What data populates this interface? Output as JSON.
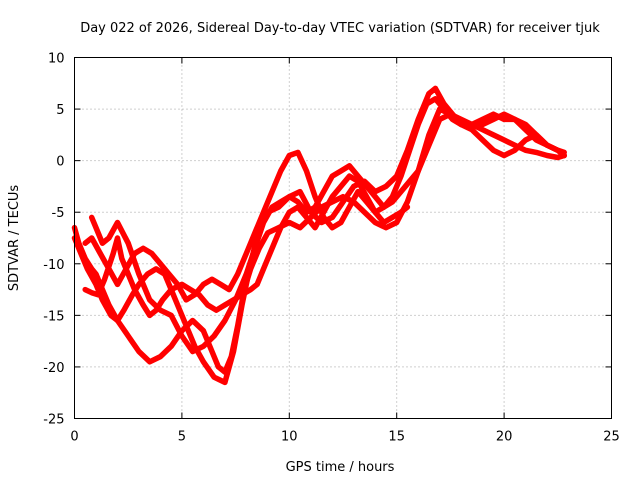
{
  "chart_data": {
    "type": "line",
    "title": "Day 022 of 2026, Sidereal Day-to-day VTEC variation (SDTVAR) for receiver tjuk",
    "xlabel": "GPS time / hours",
    "ylabel": "SDTVAR / TECUs",
    "xlim": [
      0,
      25
    ],
    "ylim": [
      -25,
      10
    ],
    "xticks": [
      "0",
      "5",
      "10",
      "15",
      "20",
      "25"
    ],
    "yticks": [
      "-25",
      "-20",
      "-15",
      "-10",
      "-5",
      "0",
      "5",
      "10"
    ],
    "grid": true,
    "color": "#ff0000",
    "series": [
      {
        "x": [
          0.0,
          0.2,
          0.5,
          0.8,
          1.0,
          1.3,
          1.6,
          2.0,
          2.5,
          3.0,
          3.5,
          4.0,
          4.5,
          5.0,
          5.5,
          6.0,
          6.4,
          6.7,
          7.0,
          7.3,
          7.6,
          7.9,
          8.2,
          8.6,
          9.0,
          9.5,
          10.0,
          10.5,
          11.0,
          11.5,
          12.0,
          12.5,
          13.0,
          13.5,
          14.0,
          14.5,
          15.0,
          15.5,
          16.0,
          16.5,
          17.0,
          17.5,
          18.0,
          18.5,
          19.0,
          19.5,
          20.0,
          20.5,
          21.0,
          21.5,
          22.0,
          22.5,
          22.8
        ],
        "y": [
          -6.5,
          -8.0,
          -9.5,
          -10.5,
          -11.0,
          -12.5,
          -14.0,
          -15.5,
          -17.0,
          -18.5,
          -19.5,
          -19.0,
          -18.0,
          -16.5,
          -15.5,
          -16.5,
          -18.5,
          -20.0,
          -20.5,
          -19.0,
          -16.0,
          -12.5,
          -10.5,
          -8.5,
          -7.0,
          -6.5,
          -6.0,
          -6.5,
          -5.5,
          -4.5,
          -4.0,
          -3.5,
          -4.0,
          -5.0,
          -6.0,
          -6.5,
          -6.0,
          -4.0,
          -1.0,
          2.5,
          5.0,
          4.5,
          4.0,
          3.5,
          3.0,
          2.5,
          2.0,
          1.5,
          1.0,
          0.8,
          0.5,
          0.3,
          0.5
        ]
      },
      {
        "x": [
          0.0,
          0.3,
          0.6,
          1.0,
          1.3,
          1.7,
          2.0,
          2.3,
          2.7,
          3.0,
          3.4,
          3.8,
          4.2,
          4.5,
          4.8,
          5.2,
          5.6,
          6.0,
          6.5,
          7.0,
          7.4,
          7.8,
          8.2,
          8.6,
          9.0,
          9.5,
          10.0,
          10.5,
          11.0,
          11.5,
          12.0,
          12.5,
          13.0,
          13.5,
          14.0,
          14.5,
          15.0,
          15.5,
          16.0,
          16.5,
          16.8,
          17.2,
          17.8,
          18.5,
          19.0,
          19.5,
          20.0,
          20.5,
          21.0,
          21.5,
          22.0,
          22.5,
          22.8
        ],
        "y": [
          -7.5,
          -9.0,
          -10.5,
          -12.0,
          -13.5,
          -15.0,
          -15.5,
          -14.5,
          -13.0,
          -12.0,
          -11.0,
          -10.5,
          -11.0,
          -12.5,
          -14.0,
          -16.0,
          -18.0,
          -19.5,
          -21.0,
          -21.5,
          -18.5,
          -14.0,
          -10.0,
          -6.5,
          -5.0,
          -4.5,
          -3.5,
          -3.0,
          -5.0,
          -6.0,
          -5.5,
          -4.0,
          -2.5,
          -2.0,
          -3.0,
          -2.5,
          -1.5,
          1.0,
          4.0,
          6.5,
          7.0,
          5.5,
          4.0,
          3.5,
          3.5,
          4.0,
          4.5,
          4.0,
          3.0,
          2.0,
          1.5,
          1.0,
          0.5
        ]
      },
      {
        "x": [
          0.5,
          0.8,
          1.2,
          1.6,
          2.0,
          2.4,
          2.8,
          3.2,
          3.6,
          4.0,
          4.4,
          4.8,
          5.2,
          5.6,
          6.0,
          6.4,
          6.8,
          7.2,
          7.6,
          8.0,
          8.4,
          8.8,
          9.2,
          9.6,
          10.0,
          10.4,
          10.8,
          11.2,
          11.6,
          12.0,
          12.4,
          12.8,
          13.2,
          13.6,
          14.0,
          14.4,
          14.8,
          15.2,
          15.6,
          16.0,
          16.4,
          16.8,
          17.2,
          17.6,
          18.0,
          18.5,
          19.0,
          19.5,
          20.0,
          20.5,
          21.0,
          21.5,
          22.0,
          22.5,
          22.8
        ],
        "y": [
          -8.0,
          -7.5,
          -9.0,
          -10.5,
          -12.0,
          -10.5,
          -9.0,
          -8.5,
          -9.0,
          -10.0,
          -11.0,
          -12.0,
          -13.5,
          -13.0,
          -12.0,
          -11.5,
          -12.0,
          -12.5,
          -11.0,
          -9.0,
          -7.0,
          -5.0,
          -3.0,
          -1.0,
          0.5,
          0.8,
          -1.0,
          -3.5,
          -5.5,
          -6.5,
          -6.0,
          -4.5,
          -3.0,
          -4.0,
          -5.0,
          -4.5,
          -3.5,
          -1.5,
          1.0,
          3.5,
          5.5,
          6.0,
          5.0,
          4.0,
          3.5,
          3.5,
          4.0,
          4.5,
          4.0,
          4.0,
          3.5,
          2.5,
          1.5,
          1.0,
          0.5
        ]
      },
      {
        "x": [
          0.5,
          0.8,
          1.1,
          1.4,
          1.8,
          2.0,
          2.2,
          2.5,
          2.8,
          3.2,
          3.5,
          3.8,
          4.1,
          4.5,
          5.0,
          5.4,
          5.8,
          6.2,
          6.6,
          7.0,
          7.4,
          7.8,
          8.2,
          8.5,
          8.8,
          9.2,
          9.6,
          10.0,
          10.4,
          10.8,
          11.2,
          11.6,
          12.0,
          12.4,
          12.8,
          13.2,
          13.6,
          14.0,
          14.4,
          14.8,
          15.2,
          15.5
        ],
        "y": [
          -12.5,
          -12.8,
          -13.0,
          -11.5,
          -9.0,
          -7.5,
          -9.5,
          -11.0,
          -12.5,
          -14.0,
          -15.0,
          -14.5,
          -13.5,
          -12.5,
          -12.0,
          -12.5,
          -13.0,
          -14.0,
          -14.5,
          -14.0,
          -13.5,
          -13.0,
          -12.5,
          -12.0,
          -10.5,
          -8.5,
          -6.5,
          -5.0,
          -4.5,
          -5.5,
          -6.5,
          -5.0,
          -3.5,
          -2.5,
          -1.5,
          -2.0,
          -3.5,
          -5.0,
          -6.0,
          -5.5,
          -5.0,
          -4.5
        ]
      },
      {
        "x": [
          0.8,
          1.0,
          1.3,
          1.6,
          2.0,
          2.5,
          3.0,
          3.5,
          4.0,
          4.5,
          5.0,
          5.5,
          6.0,
          6.5,
          7.0,
          7.5,
          8.0,
          8.4,
          8.8,
          9.2,
          9.6,
          10.0,
          10.4,
          10.8,
          11.2,
          11.6,
          12.0,
          12.4,
          12.8,
          13.2,
          13.6,
          14.0,
          14.4,
          14.8,
          15.2,
          15.6,
          16.0,
          16.5,
          17.0,
          17.5,
          18.0,
          18.5,
          19.0,
          19.5,
          20.0,
          20.5,
          21.0,
          21.5,
          22.0,
          22.5,
          22.8
        ],
        "y": [
          -5.5,
          -6.5,
          -8.0,
          -7.5,
          -6.0,
          -8.0,
          -11.0,
          -13.5,
          -14.5,
          -15.0,
          -17.0,
          -18.5,
          -18.0,
          -17.0,
          -15.5,
          -13.5,
          -11.0,
          -8.5,
          -6.0,
          -4.5,
          -4.0,
          -3.5,
          -4.0,
          -5.0,
          -4.5,
          -3.0,
          -1.5,
          -1.0,
          -0.5,
          -1.5,
          -2.5,
          -3.5,
          -4.5,
          -4.0,
          -3.0,
          -2.0,
          -1.0,
          1.5,
          4.0,
          4.5,
          3.5,
          3.0,
          2.0,
          1.0,
          0.5,
          1.0,
          2.0,
          2.5,
          1.5,
          1.0,
          0.8
        ]
      }
    ]
  }
}
